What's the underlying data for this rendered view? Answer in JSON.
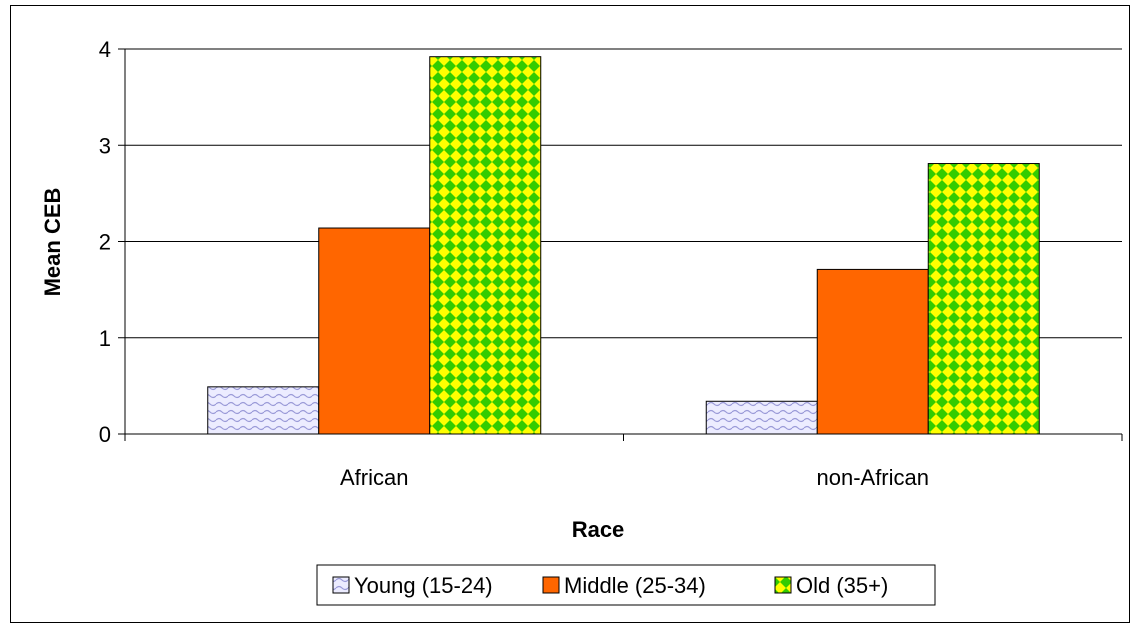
{
  "chart_data": {
    "type": "bar",
    "categories": [
      "African",
      "non-African"
    ],
    "series": [
      {
        "name": "Young (15-24)",
        "values": [
          0.49,
          0.34
        ],
        "color": "#d9d9ff",
        "pattern": "wave"
      },
      {
        "name": "Middle (25-34)",
        "values": [
          2.14,
          1.71
        ],
        "color": "#ff6600",
        "pattern": "solid"
      },
      {
        "name": "Old (35+)",
        "values": [
          3.92,
          2.81
        ],
        "color": "#ffff00",
        "pattern": "checker-green"
      }
    ],
    "title": "",
    "xlabel": "Race",
    "ylabel": "Mean CEB",
    "ylim": [
      0,
      4
    ],
    "yticks": [
      0,
      1,
      2,
      3,
      4
    ],
    "grid": true,
    "legend": "bottom"
  }
}
